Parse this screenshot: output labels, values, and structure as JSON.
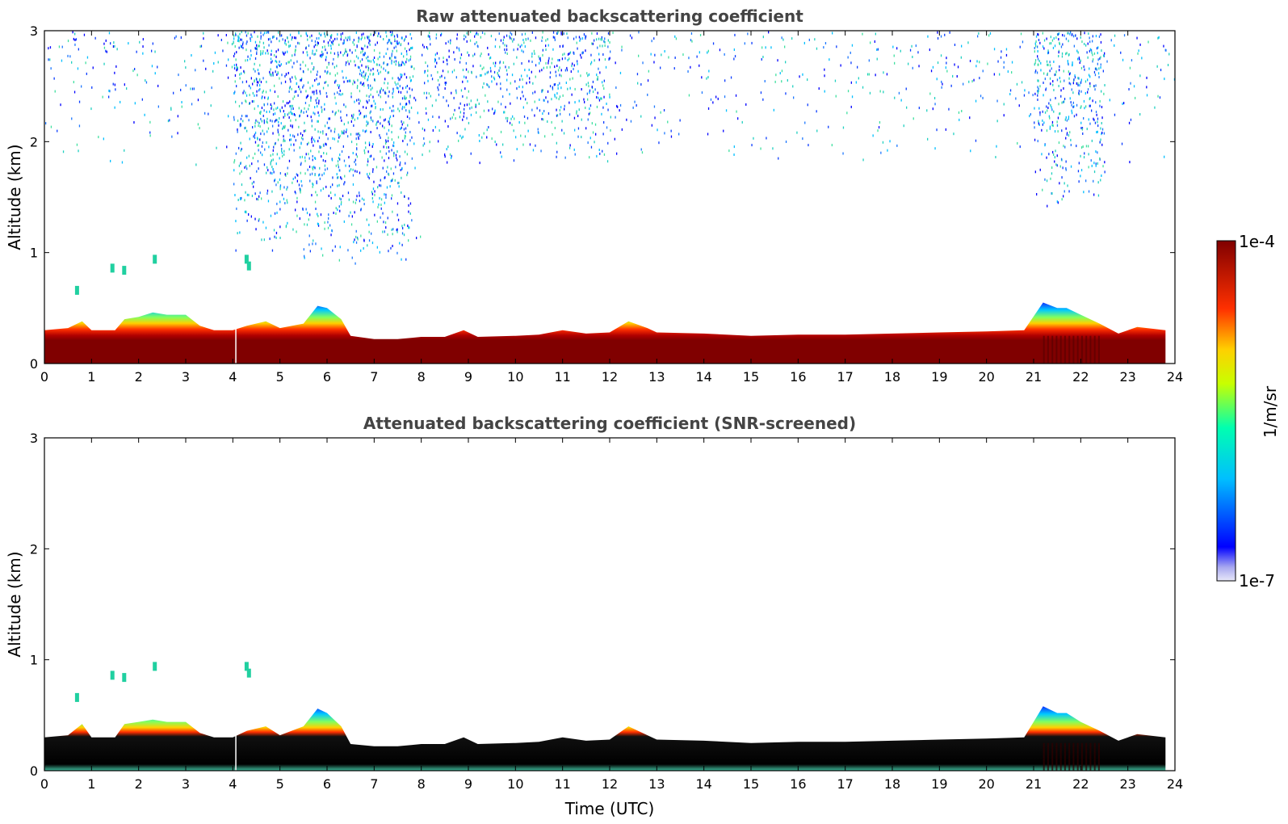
{
  "chart_data": [
    {
      "type": "heatmap",
      "title": "Raw attenuated backscattering coefficient",
      "xlabel": "",
      "ylabel": "Altitude (km)",
      "xlim": [
        0,
        24
      ],
      "ylim": [
        0,
        3
      ],
      "xticks": [
        "0",
        "1",
        "2",
        "3",
        "4",
        "5",
        "6",
        "7",
        "8",
        "9",
        "10",
        "11",
        "12",
        "13",
        "14",
        "15",
        "16",
        "17",
        "18",
        "19",
        "20",
        "21",
        "22",
        "23",
        "24"
      ],
      "yticks": [
        "0",
        "1",
        "2",
        "3"
      ],
      "layer_top_km": [
        [
          0,
          0.3
        ],
        [
          0.5,
          0.32
        ],
        [
          0.8,
          0.38
        ],
        [
          1,
          0.3
        ],
        [
          1.5,
          0.3
        ],
        [
          1.7,
          0.4
        ],
        [
          2.0,
          0.42
        ],
        [
          2.3,
          0.46
        ],
        [
          2.6,
          0.44
        ],
        [
          3.0,
          0.44
        ],
        [
          3.3,
          0.34
        ],
        [
          3.6,
          0.3
        ],
        [
          4.0,
          0.3
        ],
        [
          4.3,
          0.34
        ],
        [
          4.7,
          0.38
        ],
        [
          5.0,
          0.32
        ],
        [
          5.5,
          0.36
        ],
        [
          5.8,
          0.52
        ],
        [
          6.0,
          0.5
        ],
        [
          6.3,
          0.4
        ],
        [
          6.5,
          0.25
        ],
        [
          7.0,
          0.22
        ],
        [
          7.5,
          0.22
        ],
        [
          8.0,
          0.24
        ],
        [
          8.5,
          0.24
        ],
        [
          8.9,
          0.3
        ],
        [
          9.2,
          0.24
        ],
        [
          10,
          0.25
        ],
        [
          10.5,
          0.26
        ],
        [
          11,
          0.3
        ],
        [
          11.5,
          0.27
        ],
        [
          12,
          0.28
        ],
        [
          12.4,
          0.38
        ],
        [
          12.8,
          0.32
        ],
        [
          13,
          0.28
        ],
        [
          14,
          0.27
        ],
        [
          15,
          0.25
        ],
        [
          16,
          0.26
        ],
        [
          17,
          0.26
        ],
        [
          18,
          0.27
        ],
        [
          19,
          0.28
        ],
        [
          20,
          0.29
        ],
        [
          20.8,
          0.3
        ],
        [
          21.2,
          0.55
        ],
        [
          21.5,
          0.5
        ],
        [
          21.7,
          0.5
        ],
        [
          22.0,
          0.44
        ],
        [
          22.4,
          0.36
        ],
        [
          22.8,
          0.27
        ],
        [
          23.2,
          0.33
        ],
        [
          23.8,
          0.3
        ]
      ],
      "colorbar": {
        "min_label": "1e-7",
        "max_label": "1e-4",
        "unit": "1/m/sr"
      }
    },
    {
      "type": "heatmap",
      "title": "Attenuated backscattering coefficient (SNR-screened)",
      "xlabel": "Time (UTC)",
      "ylabel": "Altitude (km)",
      "xlim": [
        0,
        24
      ],
      "ylim": [
        0,
        3
      ],
      "xticks": [
        "0",
        "1",
        "2",
        "3",
        "4",
        "5",
        "6",
        "7",
        "8",
        "9",
        "10",
        "11",
        "12",
        "13",
        "14",
        "15",
        "16",
        "17",
        "18",
        "19",
        "20",
        "21",
        "22",
        "23",
        "24"
      ],
      "yticks": [
        "0",
        "1",
        "2",
        "3"
      ],
      "layer_top_km": [
        [
          0,
          0.3
        ],
        [
          0.5,
          0.32
        ],
        [
          0.8,
          0.42
        ],
        [
          1,
          0.3
        ],
        [
          1.5,
          0.3
        ],
        [
          1.7,
          0.42
        ],
        [
          2.0,
          0.44
        ],
        [
          2.3,
          0.46
        ],
        [
          2.6,
          0.44
        ],
        [
          3.0,
          0.44
        ],
        [
          3.3,
          0.34
        ],
        [
          3.6,
          0.3
        ],
        [
          4.0,
          0.3
        ],
        [
          4.3,
          0.36
        ],
        [
          4.7,
          0.4
        ],
        [
          5.0,
          0.32
        ],
        [
          5.5,
          0.4
        ],
        [
          5.8,
          0.56
        ],
        [
          6.0,
          0.52
        ],
        [
          6.3,
          0.4
        ],
        [
          6.5,
          0.24
        ],
        [
          7.0,
          0.22
        ],
        [
          7.5,
          0.22
        ],
        [
          8.0,
          0.24
        ],
        [
          8.5,
          0.24
        ],
        [
          8.9,
          0.3
        ],
        [
          9.2,
          0.24
        ],
        [
          10,
          0.25
        ],
        [
          10.5,
          0.26
        ],
        [
          11,
          0.3
        ],
        [
          11.5,
          0.27
        ],
        [
          12,
          0.28
        ],
        [
          12.4,
          0.4
        ],
        [
          12.8,
          0.32
        ],
        [
          13,
          0.28
        ],
        [
          14,
          0.27
        ],
        [
          15,
          0.25
        ],
        [
          16,
          0.26
        ],
        [
          17,
          0.26
        ],
        [
          18,
          0.27
        ],
        [
          19,
          0.28
        ],
        [
          20,
          0.29
        ],
        [
          20.8,
          0.3
        ],
        [
          21.2,
          0.58
        ],
        [
          21.5,
          0.52
        ],
        [
          21.7,
          0.52
        ],
        [
          22.0,
          0.44
        ],
        [
          22.4,
          0.36
        ],
        [
          22.8,
          0.27
        ],
        [
          23.2,
          0.33
        ],
        [
          23.8,
          0.3
        ]
      ],
      "colorbar": {
        "min_label": "1e-7",
        "max_label": "1e-4",
        "unit": "1/m/sr"
      }
    }
  ]
}
